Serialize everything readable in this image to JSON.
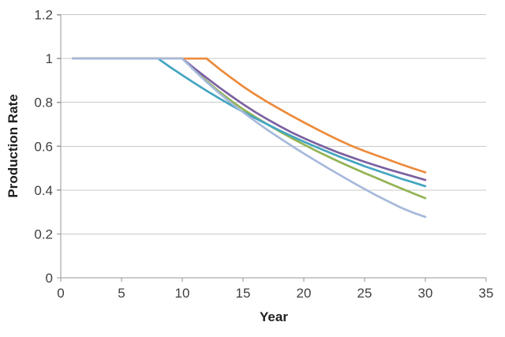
{
  "chart_data": {
    "type": "line",
    "title": "",
    "xlabel": "Year",
    "ylabel": "Production Rate",
    "xlim": [
      0,
      35
    ],
    "ylim": [
      0,
      1.2
    ],
    "x_ticks": [
      0,
      5,
      10,
      15,
      20,
      25,
      30,
      35
    ],
    "x_tick_labels": [
      "0",
      "5",
      "10",
      "15",
      "20",
      "25",
      "30",
      "35"
    ],
    "y_ticks": [
      0,
      0.2,
      0.4,
      0.6,
      0.8,
      1,
      1.2
    ],
    "y_tick_labels": [
      "0",
      "0.2",
      "0.4",
      "0.6",
      "0.8",
      "1",
      "1.2"
    ],
    "grid": true,
    "legend": false,
    "series": [
      {
        "name": "green-curve",
        "color": "#93B355",
        "points": [
          [
            1,
            1
          ],
          [
            10,
            1
          ],
          [
            11,
            0.948
          ],
          [
            12,
            0.898
          ],
          [
            13,
            0.851
          ],
          [
            14,
            0.808
          ],
          [
            15,
            0.769
          ],
          [
            16,
            0.734
          ],
          [
            17,
            0.7
          ],
          [
            18,
            0.668
          ],
          [
            19,
            0.637
          ],
          [
            20,
            0.608
          ],
          [
            21,
            0.58
          ],
          [
            22,
            0.553
          ],
          [
            23,
            0.527
          ],
          [
            24,
            0.502
          ],
          [
            25,
            0.478
          ],
          [
            26,
            0.455
          ],
          [
            27,
            0.431
          ],
          [
            28,
            0.408
          ],
          [
            29,
            0.385
          ],
          [
            30,
            0.363
          ]
        ]
      },
      {
        "name": "teal-curve",
        "color": "#44A5C1",
        "points": [
          [
            1,
            1
          ],
          [
            8,
            1
          ],
          [
            9,
            0.961
          ],
          [
            10,
            0.924
          ],
          [
            11,
            0.888
          ],
          [
            12,
            0.853
          ],
          [
            13,
            0.82
          ],
          [
            14,
            0.788
          ],
          [
            15,
            0.757
          ],
          [
            16,
            0.728
          ],
          [
            17,
            0.7
          ],
          [
            18,
            0.672
          ],
          [
            19,
            0.646
          ],
          [
            20,
            0.621
          ],
          [
            21,
            0.597
          ],
          [
            22,
            0.574
          ],
          [
            23,
            0.551
          ],
          [
            24,
            0.53
          ],
          [
            25,
            0.509
          ],
          [
            26,
            0.49
          ],
          [
            27,
            0.471
          ],
          [
            28,
            0.452
          ],
          [
            29,
            0.435
          ],
          [
            30,
            0.418
          ]
        ]
      },
      {
        "name": "purple-curve",
        "color": "#7C61A1",
        "points": [
          [
            1,
            1
          ],
          [
            10,
            1
          ],
          [
            11,
            0.955
          ],
          [
            12,
            0.912
          ],
          [
            13,
            0.87
          ],
          [
            14,
            0.83
          ],
          [
            15,
            0.792
          ],
          [
            16,
            0.756
          ],
          [
            17,
            0.723
          ],
          [
            18,
            0.692
          ],
          [
            19,
            0.663
          ],
          [
            20,
            0.637
          ],
          [
            21,
            0.613
          ],
          [
            22,
            0.59
          ],
          [
            23,
            0.568
          ],
          [
            24,
            0.548
          ],
          [
            25,
            0.529
          ],
          [
            26,
            0.511
          ],
          [
            27,
            0.494
          ],
          [
            28,
            0.478
          ],
          [
            29,
            0.462
          ],
          [
            30,
            0.446
          ]
        ]
      },
      {
        "name": "orange-curve",
        "color": "#EC8B3C",
        "points": [
          [
            1,
            1
          ],
          [
            12,
            1
          ],
          [
            13,
            0.955
          ],
          [
            14,
            0.913
          ],
          [
            15,
            0.873
          ],
          [
            16,
            0.836
          ],
          [
            17,
            0.802
          ],
          [
            18,
            0.77
          ],
          [
            19,
            0.739
          ],
          [
            20,
            0.709
          ],
          [
            21,
            0.68
          ],
          [
            22,
            0.652
          ],
          [
            23,
            0.625
          ],
          [
            24,
            0.6
          ],
          [
            25,
            0.578
          ],
          [
            26,
            0.558
          ],
          [
            27,
            0.538
          ],
          [
            28,
            0.518
          ],
          [
            29,
            0.499
          ],
          [
            30,
            0.481
          ]
        ]
      },
      {
        "name": "lightblue-curve",
        "color": "#A6B9DB",
        "points": [
          [
            1,
            1
          ],
          [
            10,
            1
          ],
          [
            11,
            0.945
          ],
          [
            12,
            0.893
          ],
          [
            13,
            0.844
          ],
          [
            14,
            0.798
          ],
          [
            15,
            0.755
          ],
          [
            16,
            0.714
          ],
          [
            17,
            0.675
          ],
          [
            18,
            0.638
          ],
          [
            19,
            0.602
          ],
          [
            20,
            0.567
          ],
          [
            21,
            0.533
          ],
          [
            22,
            0.5
          ],
          [
            23,
            0.468
          ],
          [
            24,
            0.436
          ],
          [
            25,
            0.405
          ],
          [
            26,
            0.375
          ],
          [
            27,
            0.347
          ],
          [
            28,
            0.32
          ],
          [
            29,
            0.297
          ],
          [
            30,
            0.278
          ]
        ]
      }
    ]
  },
  "colors": {
    "background": "#FFFFFF",
    "gridline": "#C9C9C9",
    "axis": "#969696",
    "tick_label": "#3F3F3F",
    "axis_title": "#1F1F1F"
  }
}
